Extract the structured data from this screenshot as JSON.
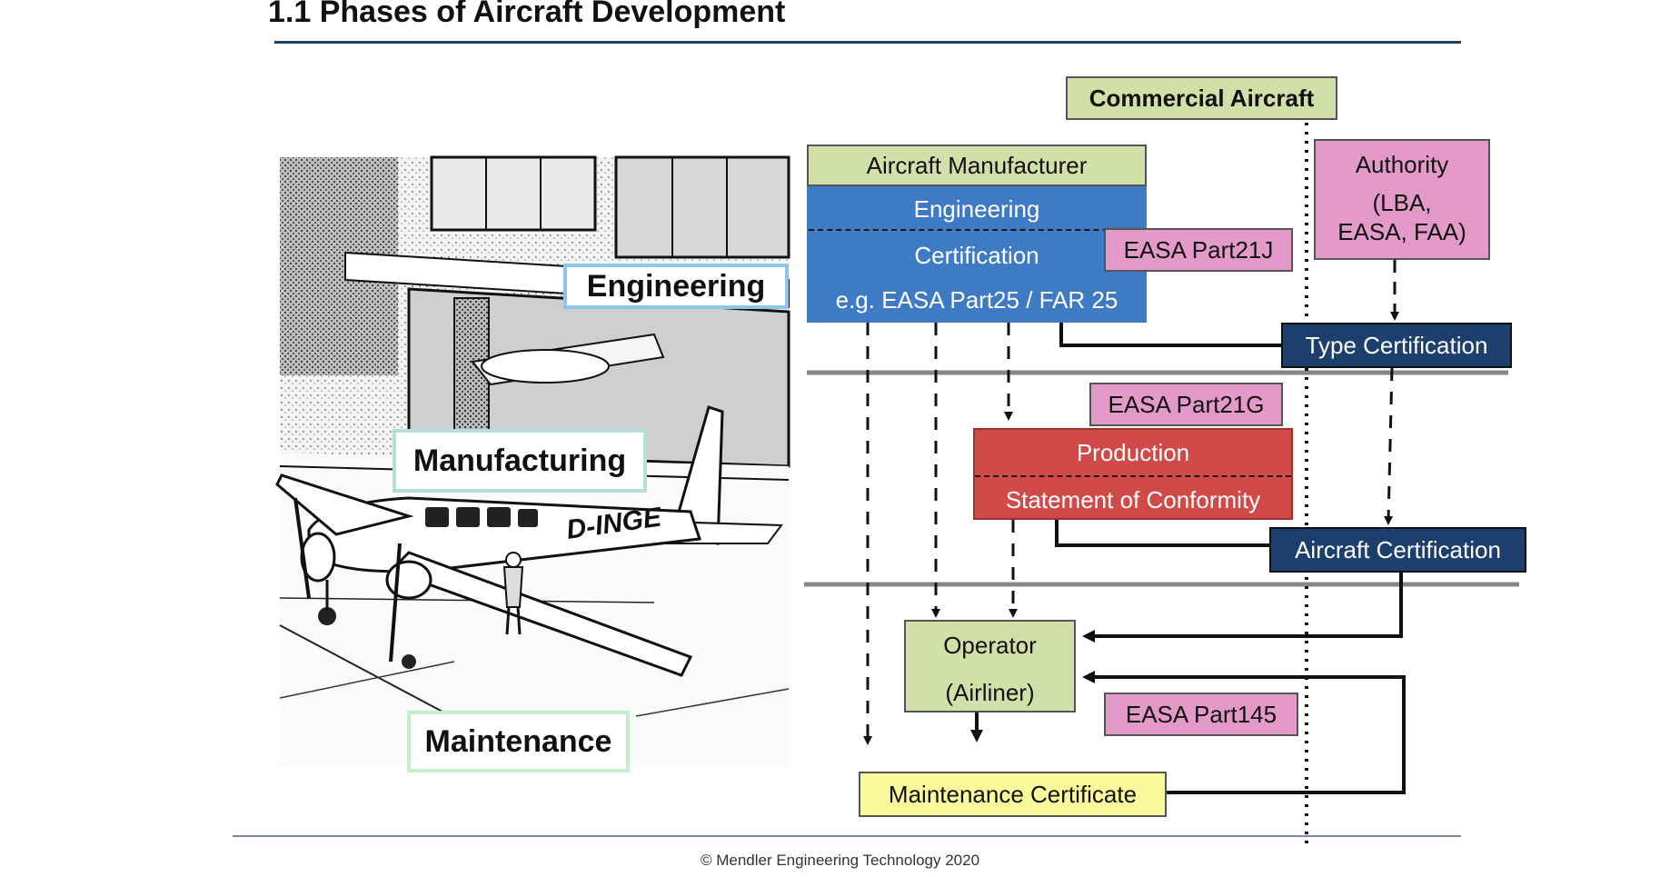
{
  "title": "1.1 Phases of Aircraft Development",
  "footer": "© Mendler Engineering Technology 2020",
  "phases": {
    "engineering": "Engineering",
    "manufacturing": "Manufacturing",
    "maintenance": "Maintenance"
  },
  "illustration": {
    "registration": "D-INGE"
  },
  "diagram": {
    "commercial_aircraft": "Commercial Aircraft",
    "aircraft_manufacturer": "Aircraft Manufacturer",
    "engineering": "Engineering",
    "certification": "Certification",
    "certification_example": "e.g. EASA Part25 / FAR 25",
    "authority_title": "Authority",
    "authority_line1": "(LBA,",
    "authority_line2": "EASA, FAA)",
    "easa_part21j": "EASA Part21J",
    "type_certification": "Type Certification",
    "easa_part21g": "EASA Part21G",
    "production": "Production",
    "statement_of_conformity": "Statement of Conformity",
    "aircraft_certification": "Aircraft Certification",
    "operator": "Operator",
    "airliner": "(Airliner)",
    "easa_part145": "EASA Part145",
    "maintenance_certificate": "Maintenance Certificate"
  },
  "colors": {
    "title_rule": "#1f3f5a",
    "engineering_blue": "#3f7ac4",
    "navy": "#1c3f6e",
    "pink": "#e39ac8",
    "green": "#d3dfa9",
    "production_red": "#d04a4a",
    "yellow": "#fbfa9a"
  }
}
